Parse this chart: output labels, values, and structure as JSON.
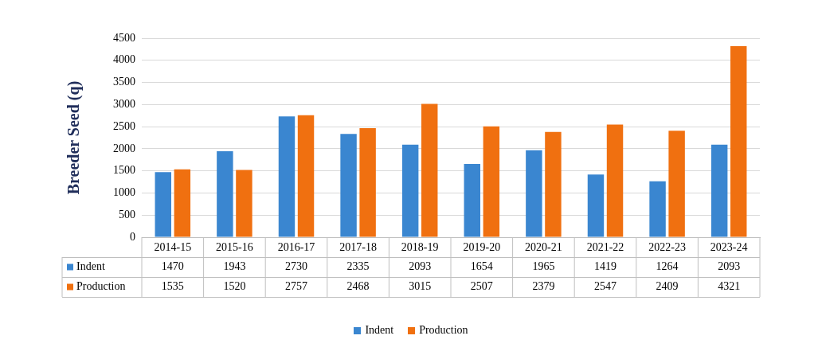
{
  "chart_data": {
    "type": "bar",
    "ylabel": "Breeder Seed (q)",
    "categories": [
      "2014-15",
      "2015-16",
      "2016-17",
      "2017-18",
      "2018-19",
      "2019-20",
      "2020-21",
      "2021-22",
      "2022-23",
      "2023-24"
    ],
    "series": [
      {
        "name": "Indent",
        "color": "#3a86d0",
        "values": [
          1470,
          1943,
          2730,
          2335,
          2093,
          1654,
          1965,
          1419,
          1264,
          2093
        ]
      },
      {
        "name": "Production",
        "color": "#f07010",
        "values": [
          1535,
          1520,
          2757,
          2468,
          3015,
          2507,
          2379,
          2547,
          2409,
          4321
        ]
      }
    ],
    "ylim": [
      0,
      4500
    ],
    "yticks": [
      0,
      500,
      1000,
      1500,
      2000,
      2500,
      3000,
      3500,
      4000,
      4500
    ],
    "grid": "y",
    "legend": "bottom",
    "data_labels": true
  }
}
